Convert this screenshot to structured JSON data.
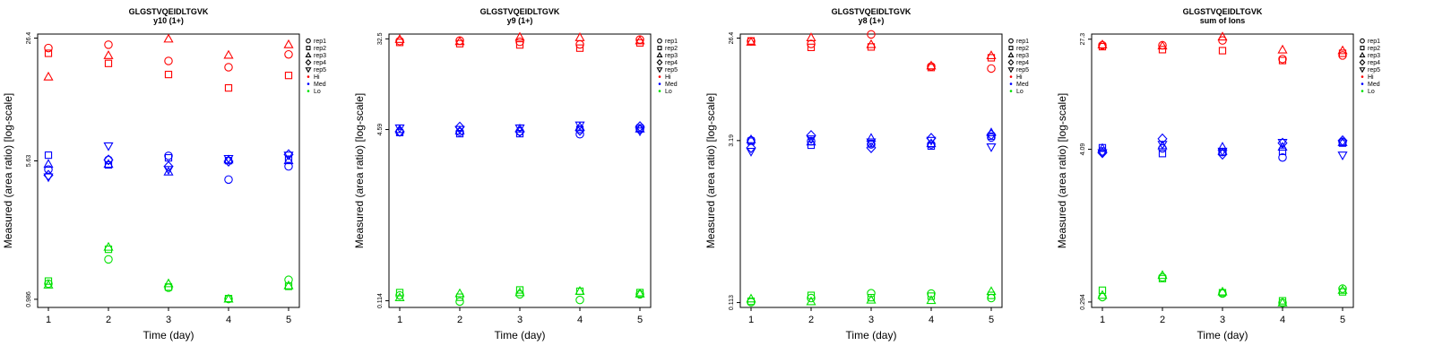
{
  "colors": {
    "Hi": "#ff0000",
    "Med": "#0000ff",
    "Lo": "#00e000",
    "axis": "#000000"
  },
  "legend": {
    "reps": [
      "rep1",
      "rep2",
      "rep3",
      "rep4",
      "rep5"
    ],
    "rep_shapes": [
      "circle",
      "square",
      "triangle-up",
      "diamond",
      "triangle-down"
    ],
    "groups": [
      "Hi",
      "Med",
      "Lo"
    ]
  },
  "chart_data": [
    {
      "type": "scatter",
      "title": "GLGSTVQEIDLTGVK",
      "subtitle": "y10 (1+)",
      "xlabel": "Time (day)",
      "ylabel": "Measured (area ratio) [log-scale]",
      "x_ticks": [
        1,
        2,
        3,
        4,
        5
      ],
      "y_ticks": [
        0.986,
        5.63,
        26.4
      ],
      "y_tick_labels": [
        "0.986",
        "5.63",
        "26.4"
      ],
      "ylim_log10": [
        -0.0506,
        1.4437
      ],
      "groups": {
        "Hi": {
          "rep1": [
            23.3,
            24.3,
            19.8,
            18.3,
            21.5
          ],
          "rep2": [
            21.8,
            19.2,
            16.7,
            14.1,
            16.5
          ],
          "rep3": [
            16.2,
            21.2,
            26.1,
            21.3,
            24.3
          ],
          "rep4": [
            null,
            null,
            null,
            null,
            null
          ],
          "rep5": [
            null,
            null,
            null,
            null,
            null
          ]
        },
        "Med": {
          "rep1": [
            5.05,
            5.7,
            6.0,
            4.45,
            5.25
          ],
          "rep2": [
            6.05,
            5.35,
            5.85,
            5.65,
            5.75
          ],
          "rep3": [
            5.4,
            5.4,
            4.9,
            5.7,
            5.65
          ],
          "rep4": [
            4.7,
            5.7,
            5.25,
            5.6,
            6.1
          ],
          "rep5": [
            4.6,
            6.8,
            5.05,
            5.8,
            6.05
          ]
        },
        "Lo": {
          "rep1": [
            1.2,
            1.63,
            1.14,
            0.99,
            1.26
          ],
          "rep2": [
            1.24,
            1.85,
            1.15,
            0.995,
            1.16
          ],
          "rep3": [
            1.18,
            1.9,
            1.2,
            0.99,
            1.17
          ],
          "rep4": [
            null,
            null,
            null,
            null,
            null
          ],
          "rep5": [
            null,
            null,
            null,
            null,
            null
          ]
        }
      }
    },
    {
      "type": "scatter",
      "title": "GLGSTVQEIDLTGVK",
      "subtitle": "y9 (1+)",
      "xlabel": "Time (day)",
      "ylabel": "Measured (area ratio) [log-scale]",
      "x_ticks": [
        1,
        2,
        3,
        4,
        5
      ],
      "y_ticks": [
        0.114,
        4.59,
        32.5
      ],
      "y_tick_labels": [
        "0.114",
        "4.59",
        "32.5"
      ],
      "ylim_log10": [
        -1.0056,
        1.5568
      ],
      "groups": {
        "Hi": {
          "rep1": [
            31.0,
            31.3,
            30.5,
            28.8,
            32.0
          ],
          "rep2": [
            30.1,
            29.3,
            28.5,
            26.6,
            29.8
          ],
          "rep3": [
            32.1,
            30.7,
            33.7,
            33.4,
            31.2
          ],
          "rep4": [
            null,
            null,
            null,
            null,
            null
          ],
          "rep5": [
            null,
            null,
            null,
            null,
            null
          ]
        },
        "Med": {
          "rep1": [
            4.35,
            4.35,
            4.4,
            4.15,
            4.6
          ],
          "rep2": [
            4.3,
            4.2,
            4.2,
            4.6,
            4.75
          ],
          "rep3": [
            4.6,
            4.45,
            4.65,
            4.85,
            4.65
          ],
          "rep4": [
            4.4,
            4.85,
            4.4,
            4.5,
            4.9
          ],
          "rep5": [
            4.75,
            4.6,
            4.75,
            5.05,
            4.45
          ]
        },
        "Lo": {
          "rep1": [
            0.128,
            0.112,
            0.131,
            0.116,
            0.131
          ],
          "rep2": [
            0.136,
            0.123,
            0.144,
            0.14,
            0.136
          ],
          "rep3": [
            0.122,
            0.133,
            0.136,
            0.14,
            0.132
          ],
          "rep4": [
            null,
            null,
            null,
            null,
            null
          ],
          "rep5": [
            null,
            null,
            null,
            null,
            null
          ]
        }
      }
    },
    {
      "type": "scatter",
      "title": "GLGSTVQEIDLTGVK",
      "subtitle": "y8 (1+)",
      "xlabel": "Time (day)",
      "ylabel": "Measured (area ratio) [log-scale]",
      "x_ticks": [
        1,
        2,
        3,
        4,
        5
      ],
      "y_ticks": [
        0.113,
        3.19,
        26.4
      ],
      "y_tick_labels": [
        "0.113",
        "3.19",
        "26.4"
      ],
      "ylim_log10": [
        -0.9905,
        1.4578
      ],
      "groups": {
        "Hi": {
          "rep1": [
            24.7,
            23.4,
            28.5,
            14.7,
            14.1
          ],
          "rep2": [
            24.9,
            21.8,
            22.0,
            14.4,
            17.6
          ],
          "rep3": [
            24.3,
            26.6,
            23.1,
            14.9,
            18.4
          ],
          "rep4": [
            null,
            null,
            null,
            null,
            null
          ],
          "rep5": [
            null,
            null,
            null,
            null,
            null
          ]
        },
        "Med": {
          "rep1": [
            3.2,
            3.15,
            2.95,
            2.95,
            3.4
          ],
          "rep2": [
            3.15,
            2.9,
            3.0,
            2.85,
            3.5
          ],
          "rep3": [
            3.25,
            3.1,
            3.35,
            3.0,
            3.75
          ],
          "rep4": [
            2.75,
            3.55,
            2.75,
            3.35,
            3.6
          ],
          "rep5": [
            2.55,
            3.3,
            3.1,
            3.2,
            2.8
          ]
        },
        "Lo": {
          "rep1": [
            0.114,
            0.124,
            0.137,
            0.136,
            0.124
          ],
          "rep2": [
            0.116,
            0.131,
            0.125,
            0.129,
            0.131
          ],
          "rep3": [
            0.122,
            0.115,
            0.119,
            0.118,
            0.142
          ],
          "rep4": [
            null,
            null,
            null,
            null,
            null
          ],
          "rep5": [
            null,
            null,
            null,
            null,
            null
          ]
        }
      }
    },
    {
      "type": "scatter",
      "title": "GLGSTVQEIDLTGVK",
      "subtitle": "sum of Ions",
      "xlabel": "Time (day)",
      "ylabel": "Measured (area ratio) [log-scale]",
      "x_ticks": [
        1,
        2,
        3,
        4,
        5
      ],
      "y_ticks": [
        0.294,
        4.09,
        27.3
      ],
      "y_tick_labels": [
        "0.294",
        "4.09",
        "27.3"
      ],
      "ylim_log10": [
        -0.5724,
        1.4745
      ],
      "groups": {
        "Hi": {
          "rep1": [
            24.6,
            24.6,
            26.7,
            19.4,
            20.6
          ],
          "rep2": [
            24.0,
            22.8,
            22.4,
            18.9,
            21.4
          ],
          "rep3": [
            24.8,
            24.3,
            28.4,
            22.7,
            22.4
          ],
          "rep4": [
            null,
            null,
            null,
            null,
            null
          ],
          "rep5": [
            null,
            null,
            null,
            null,
            null
          ]
        },
        "Med": {
          "rep1": [
            3.95,
            4.15,
            3.9,
            3.55,
            4.65
          ],
          "rep2": [
            4.2,
            3.8,
            3.9,
            3.95,
            4.55
          ],
          "rep3": [
            4.15,
            4.35,
            4.25,
            4.25,
            4.6
          ],
          "rep4": [
            3.85,
            4.9,
            3.75,
            4.55,
            4.75
          ],
          "rep5": [
            3.85,
            4.45,
            3.95,
            4.6,
            3.7
          ]
        },
        "Lo": {
          "rep1": [
            0.32,
            0.45,
            0.34,
            0.29,
            0.37
          ],
          "rep2": [
            0.36,
            0.44,
            0.345,
            0.3,
            0.35
          ],
          "rep3": [
            0.33,
            0.465,
            0.35,
            0.29,
            0.36
          ],
          "rep4": [
            null,
            null,
            null,
            null,
            null
          ],
          "rep5": [
            null,
            null,
            null,
            null,
            null
          ]
        }
      }
    }
  ]
}
